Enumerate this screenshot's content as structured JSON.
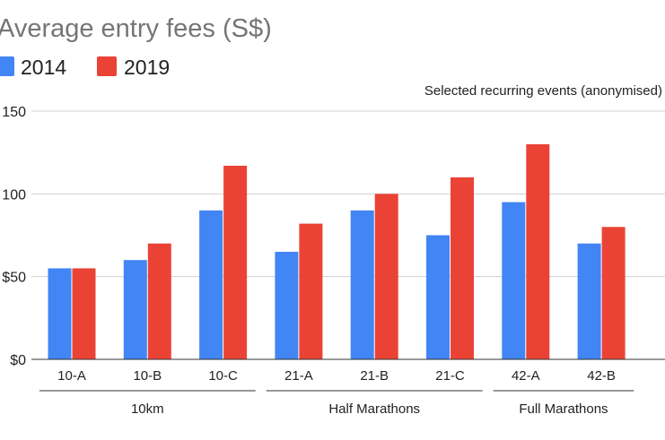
{
  "chart_data": {
    "type": "bar",
    "title": "Average entry fees (S$)",
    "subtitle": "Selected recurring events (anonymised)",
    "categories": [
      "10-A",
      "10-B",
      "10-C",
      "21-A",
      "21-B",
      "21-C",
      "42-A",
      "42-B"
    ],
    "groups": [
      {
        "label": "10km",
        "categories": [
          "10-A",
          "10-B",
          "10-C"
        ]
      },
      {
        "label": "Half Marathons",
        "categories": [
          "21-A",
          "21-B",
          "21-C"
        ]
      },
      {
        "label": "Full Marathons",
        "categories": [
          "42-A",
          "42-B"
        ]
      }
    ],
    "series": [
      {
        "name": "2014",
        "color": "#4285f4",
        "values": [
          55,
          60,
          90,
          65,
          90,
          75,
          95,
          70
        ]
      },
      {
        "name": "2019",
        "color": "#ea4335",
        "values": [
          55,
          70,
          117,
          82,
          100,
          110,
          130,
          80
        ]
      }
    ],
    "yticks": [
      {
        "value": 0,
        "label": "$0"
      },
      {
        "value": 50,
        "label": "$50"
      },
      {
        "value": 100,
        "label": "100"
      },
      {
        "value": 150,
        "label": "150"
      }
    ],
    "ylim": [
      0,
      150
    ],
    "grid": true,
    "legend_position": "top-left"
  }
}
